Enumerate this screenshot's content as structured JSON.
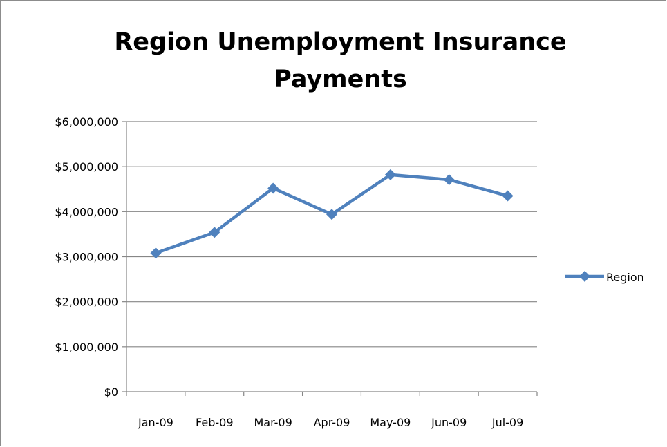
{
  "chart_data": {
    "type": "line",
    "title": "Region Unemployment Insurance Payments",
    "title_lines": [
      "Region Unemployment Insurance",
      "Payments"
    ],
    "categories": [
      "Jan-09",
      "Feb-09",
      "Mar-09",
      "Apr-09",
      "May-09",
      "Jun-09",
      "Jul-09"
    ],
    "series": [
      {
        "name": "Region",
        "values": [
          3080000,
          3540000,
          4520000,
          3940000,
          4820000,
          4710000,
          4350000
        ],
        "color": "#4f81bd",
        "marker": "diamond"
      }
    ],
    "ylim": [
      0,
      6000000
    ],
    "yticks": [
      0,
      1000000,
      2000000,
      3000000,
      4000000,
      5000000,
      6000000
    ],
    "ytick_labels": [
      "$0",
      "$1,000,000",
      "$2,000,000",
      "$3,000,000",
      "$4,000,000",
      "$5,000,000",
      "$6,000,000"
    ],
    "grid": true,
    "legend_position": "right"
  }
}
